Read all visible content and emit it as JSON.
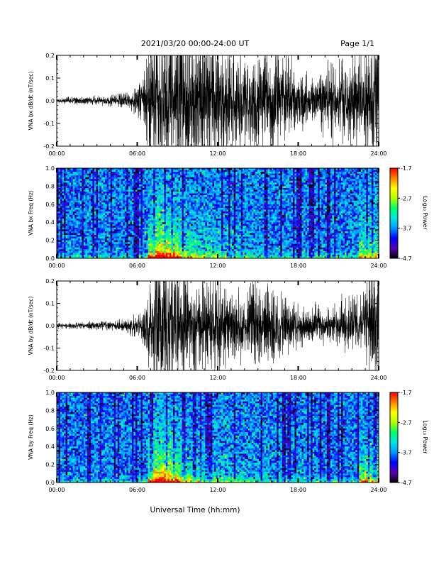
{
  "header": {
    "title": "2021/03/20  00:00-24:00 UT",
    "page": "Page 1/1"
  },
  "x_axis_label": "Universal Time (hh:mm)",
  "colorbar": {
    "label": "Log₁₀ Power",
    "ticks": [
      "-1.7",
      "-2.7",
      "-3.7",
      "-4.7"
    ],
    "range": [
      -4.7,
      -1.7
    ],
    "colors": [
      "#000000",
      "#5a00b4",
      "#0000ff",
      "#0096ff",
      "#00e6e6",
      "#00ff64",
      "#b4ff00",
      "#ffff00",
      "#ff8000",
      "#ff0000"
    ]
  },
  "chart_data": [
    {
      "type": "line",
      "name": "bx-waveform",
      "ylabel": "VNA bx dB/dt (nT/sec)",
      "xlim_hours": [
        0,
        24
      ],
      "ylim": [
        -0.2,
        0.2
      ],
      "xticks": [
        "00:00",
        "06:00",
        "12:00",
        "18:00",
        "24:00"
      ],
      "yticks": [
        "0.2",
        "0.1",
        "0.0",
        "-0.1",
        "-0.2"
      ],
      "envelope": {
        "x_hours": [
          0,
          1,
          2,
          3,
          4,
          5,
          6,
          6.5,
          7,
          7.5,
          8,
          9,
          10,
          11,
          12,
          12.5,
          13,
          14,
          15,
          16,
          17,
          18,
          19,
          20,
          21,
          22,
          23,
          23.5,
          24
        ],
        "amplitude": [
          0.008,
          0.009,
          0.01,
          0.011,
          0.014,
          0.02,
          0.035,
          0.06,
          0.2,
          0.2,
          0.2,
          0.2,
          0.18,
          0.2,
          0.2,
          0.15,
          0.14,
          0.12,
          0.16,
          0.13,
          0.12,
          0.08,
          0.07,
          0.09,
          0.11,
          0.13,
          0.12,
          0.2,
          0.2
        ]
      }
    },
    {
      "type": "heatmap",
      "name": "bx-spectrogram",
      "ylabel": "VNA bx Freq (Hz)",
      "xlim_hours": [
        0,
        24
      ],
      "ylim": [
        0,
        1.0
      ],
      "xticks": [
        "00:00",
        "06:00",
        "12:00",
        "18:00",
        "24:00"
      ],
      "yticks": [
        "1.0",
        "0.8",
        "0.6",
        "0.4",
        "0.2",
        "0.0"
      ],
      "value_units": "Log10 Power",
      "value_range": [
        -4.7,
        -1.7
      ]
    },
    {
      "type": "line",
      "name": "by-waveform",
      "ylabel": "VNA by dB/dt (nT/sec)",
      "xlim_hours": [
        0,
        24
      ],
      "ylim": [
        -0.2,
        0.2
      ],
      "xticks": [
        "00:00",
        "06:00",
        "12:00",
        "18:00",
        "24:00"
      ],
      "yticks": [
        "0.2",
        "0.1",
        "0.0",
        "-0.1",
        "-0.2"
      ],
      "envelope": {
        "x_hours": [
          0,
          1,
          2,
          3,
          4,
          5,
          6,
          6.5,
          7,
          7.5,
          8,
          9,
          10,
          11,
          12,
          12.5,
          13,
          14,
          15,
          16,
          17,
          18,
          19,
          20,
          21,
          22,
          23,
          23.5,
          24
        ],
        "amplitude": [
          0.007,
          0.008,
          0.009,
          0.01,
          0.012,
          0.017,
          0.03,
          0.05,
          0.13,
          0.2,
          0.2,
          0.14,
          0.12,
          0.13,
          0.14,
          0.11,
          0.1,
          0.09,
          0.12,
          0.09,
          0.08,
          0.06,
          0.05,
          0.05,
          0.06,
          0.07,
          0.08,
          0.2,
          0.16
        ]
      }
    },
    {
      "type": "heatmap",
      "name": "by-spectrogram",
      "ylabel": "VNA by Freq (Hz)",
      "xlim_hours": [
        0,
        24
      ],
      "ylim": [
        0,
        1.0
      ],
      "xticks": [
        "00:00",
        "06:00",
        "12:00",
        "18:00",
        "24:00"
      ],
      "yticks": [
        "1.0",
        "0.8",
        "0.6",
        "0.4",
        "0.2",
        "0.0"
      ],
      "value_units": "Log10 Power",
      "value_range": [
        -4.7,
        -1.7
      ]
    }
  ]
}
